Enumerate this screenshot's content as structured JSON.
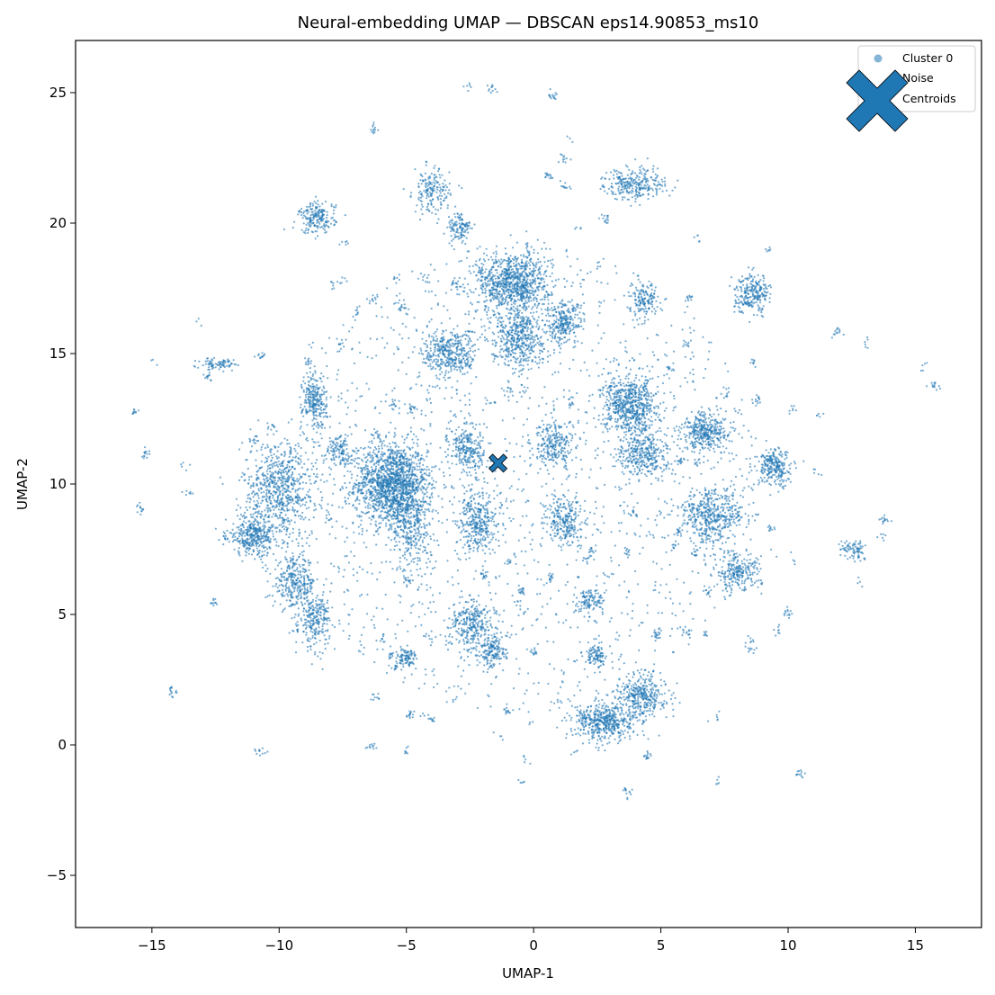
{
  "chart_data": {
    "type": "scatter",
    "title": "Neural-embedding UMAP — DBSCAN eps14.90853_ms10",
    "xlabel": "UMAP-1",
    "ylabel": "UMAP-2",
    "xlim": [
      -18.0,
      17.6
    ],
    "ylim": [
      -7.0,
      27.0
    ],
    "xticks": [
      -15,
      -10,
      -5,
      0,
      5,
      10,
      15
    ],
    "xtick_labels": [
      "−15",
      "−10",
      "−5",
      "0",
      "5",
      "10",
      "15"
    ],
    "yticks": [
      -5,
      0,
      5,
      10,
      15,
      20,
      25
    ],
    "ytick_labels": [
      "−5",
      "0",
      "5",
      "10",
      "15",
      "20",
      "25"
    ],
    "grid": false,
    "legend": {
      "placement": "top-right",
      "entries": [
        "Cluster 0",
        "Noise",
        "Centroids"
      ]
    },
    "colors": {
      "cluster0": "#1f77b4",
      "centroid": "#1f77b4",
      "edge": "#000000"
    },
    "series": [
      {
        "name": "Cluster 0",
        "note_clusters": [
          {
            "cx": -5.6,
            "cy": 10.0,
            "rx": 1.2,
            "ry": 1.3,
            "n": 1400
          },
          {
            "cx": -4.8,
            "cy": 8.6,
            "rx": 0.7,
            "ry": 1.8,
            "n": 400
          },
          {
            "cx": -10.0,
            "cy": 9.8,
            "rx": 1.2,
            "ry": 1.6,
            "n": 700
          },
          {
            "cx": -11.0,
            "cy": 8.0,
            "rx": 0.9,
            "ry": 0.6,
            "n": 350
          },
          {
            "cx": -9.4,
            "cy": 6.2,
            "rx": 0.7,
            "ry": 0.8,
            "n": 300
          },
          {
            "cx": -8.6,
            "cy": 4.8,
            "rx": 0.5,
            "ry": 0.9,
            "n": 250
          },
          {
            "cx": -8.6,
            "cy": 13.2,
            "rx": 0.4,
            "ry": 0.9,
            "n": 250
          },
          {
            "cx": -8.5,
            "cy": 20.2,
            "rx": 0.6,
            "ry": 0.5,
            "n": 200
          },
          {
            "cx": -4.0,
            "cy": 21.2,
            "rx": 0.6,
            "ry": 0.7,
            "n": 180
          },
          {
            "cx": -2.9,
            "cy": 19.8,
            "rx": 0.4,
            "ry": 0.5,
            "n": 120
          },
          {
            "cx": -0.8,
            "cy": 17.7,
            "rx": 1.2,
            "ry": 1.0,
            "n": 900
          },
          {
            "cx": -0.6,
            "cy": 15.6,
            "rx": 0.9,
            "ry": 0.9,
            "n": 450
          },
          {
            "cx": 1.2,
            "cy": 16.2,
            "rx": 0.6,
            "ry": 0.7,
            "n": 260
          },
          {
            "cx": -3.3,
            "cy": 15.0,
            "rx": 0.9,
            "ry": 0.8,
            "n": 400
          },
          {
            "cx": 3.8,
            "cy": 13.0,
            "rx": 0.9,
            "ry": 0.9,
            "n": 650
          },
          {
            "cx": 4.3,
            "cy": 11.2,
            "rx": 0.8,
            "ry": 0.8,
            "n": 350
          },
          {
            "cx": 6.8,
            "cy": 12.0,
            "rx": 0.8,
            "ry": 0.6,
            "n": 350
          },
          {
            "cx": 7.0,
            "cy": 8.8,
            "rx": 1.0,
            "ry": 0.9,
            "n": 450
          },
          {
            "cx": 8.0,
            "cy": 6.6,
            "rx": 0.8,
            "ry": 0.6,
            "n": 250
          },
          {
            "cx": 9.5,
            "cy": 10.6,
            "rx": 0.6,
            "ry": 0.6,
            "n": 250
          },
          {
            "cx": 8.6,
            "cy": 17.3,
            "rx": 0.6,
            "ry": 0.6,
            "n": 250
          },
          {
            "cx": 4.0,
            "cy": 21.5,
            "rx": 1.0,
            "ry": 0.5,
            "n": 280
          },
          {
            "cx": 4.3,
            "cy": 17.0,
            "rx": 0.5,
            "ry": 0.6,
            "n": 150
          },
          {
            "cx": 2.8,
            "cy": 0.9,
            "rx": 1.0,
            "ry": 0.6,
            "n": 500
          },
          {
            "cx": 4.3,
            "cy": 1.9,
            "rx": 0.8,
            "ry": 0.7,
            "n": 350
          },
          {
            "cx": -2.4,
            "cy": 4.6,
            "rx": 0.7,
            "ry": 0.9,
            "n": 300
          },
          {
            "cx": -1.6,
            "cy": 3.6,
            "rx": 0.4,
            "ry": 0.5,
            "n": 150
          },
          {
            "cx": 1.2,
            "cy": 8.6,
            "rx": 0.6,
            "ry": 0.8,
            "n": 250
          },
          {
            "cx": 0.8,
            "cy": 11.5,
            "rx": 0.7,
            "ry": 0.7,
            "n": 250
          },
          {
            "cx": -2.6,
            "cy": 11.3,
            "rx": 0.6,
            "ry": 0.8,
            "n": 250
          },
          {
            "cx": -2.2,
            "cy": 8.6,
            "rx": 0.7,
            "ry": 1.0,
            "n": 350
          },
          {
            "cx": 12.6,
            "cy": 7.5,
            "rx": 0.4,
            "ry": 0.3,
            "n": 80
          },
          {
            "cx": -12.4,
            "cy": 14.6,
            "rx": 0.6,
            "ry": 0.2,
            "n": 80
          },
          {
            "cx": -7.6,
            "cy": 11.3,
            "rx": 0.5,
            "ry": 0.5,
            "n": 120
          },
          {
            "cx": 2.2,
            "cy": 5.5,
            "rx": 0.4,
            "ry": 0.4,
            "n": 100
          },
          {
            "cx": 2.4,
            "cy": 3.4,
            "rx": 0.4,
            "ry": 0.4,
            "n": 100
          },
          {
            "cx": -5.0,
            "cy": 3.4,
            "rx": 0.3,
            "ry": 0.3,
            "n": 80
          }
        ]
      }
    ],
    "centroids": [
      {
        "label": "Cluster 0",
        "x": -1.4,
        "y": 10.8
      }
    ]
  }
}
